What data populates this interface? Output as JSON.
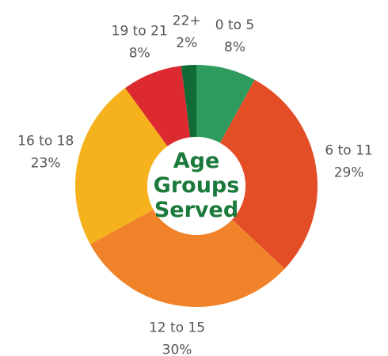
{
  "chart_data": {
    "type": "donut",
    "title": "Age Groups Served",
    "categories": [
      "0 to 5",
      "6 to 11",
      "12 to 15",
      "16 to 18",
      "19 to 21",
      "22+"
    ],
    "values": [
      8,
      29,
      30,
      23,
      8,
      2
    ],
    "value_labels": [
      "8%",
      "29%",
      "30%",
      "23%",
      "8%",
      "2%"
    ],
    "colors": [
      "#2e9a5e",
      "#e44e27",
      "#f0832a",
      "#f5b21c",
      "#dc2a30",
      "#0f6a35"
    ]
  }
}
